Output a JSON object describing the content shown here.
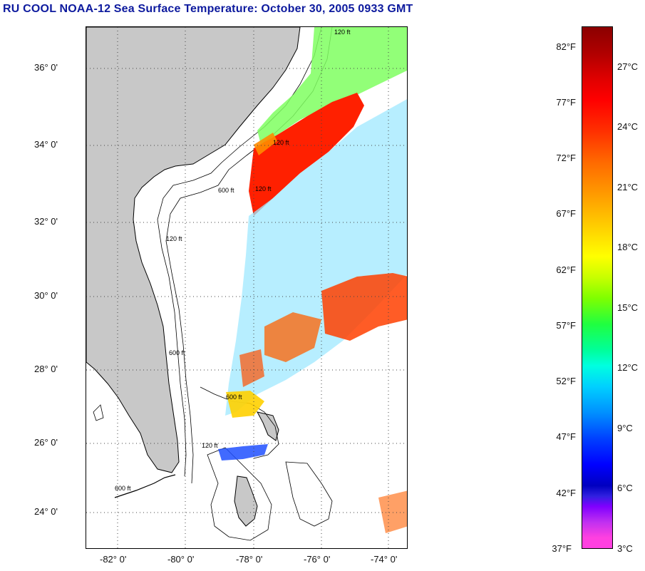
{
  "title": "RU COOL  NOAA-12  Sea Surface Temperature:  October 30, 2005 0933 GMT",
  "lat_labels": [
    "36° 0'",
    "34° 0'",
    "32° 0'",
    "30° 0'",
    "28° 0'",
    "26° 0'",
    "24° 0'"
  ],
  "lon_labels": [
    "-82° 0'",
    "-80° 0'",
    "-78° 0'",
    "-76° 0'",
    "-74° 0'"
  ],
  "colorbar": {
    "fahrenheit": [
      "82°F",
      "77°F",
      "72°F",
      "67°F",
      "62°F",
      "57°F",
      "52°F",
      "47°F",
      "42°F",
      "37°F"
    ],
    "celsius": [
      "27°C",
      "24°C",
      "21°C",
      "18°C",
      "15°C",
      "12°C",
      "9°C",
      "6°C",
      "3°C"
    ]
  },
  "contour_labels": [
    "120 ft",
    "600 ft",
    "120 ft",
    "600 ft",
    "120 ft",
    "600 ft",
    "120 ft",
    "600 ft",
    "120 ft"
  ],
  "colors": {
    "land": "#c8c8c8",
    "title": "#0d1a9e",
    "warm": "#ff2000",
    "cool": "#00c8ff"
  }
}
